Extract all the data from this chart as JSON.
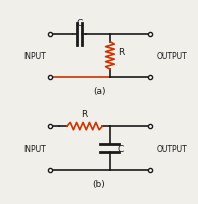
{
  "bg_color": "#f0efea",
  "line_color": "#1a1a1a",
  "red_color": "#cc3300",
  "text_color": "#1a1a1a",
  "fig_width": 1.98,
  "fig_height": 2.05,
  "dpi": 100,
  "label_a": "(a)",
  "label_b": "(b)",
  "input_label": "INPUT",
  "output_label": "OUTPUT"
}
